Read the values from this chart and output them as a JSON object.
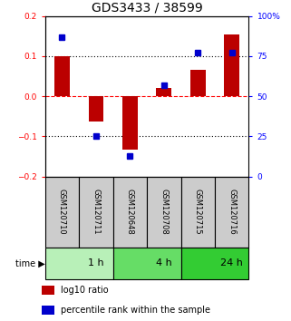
{
  "title": "GDS3433 / 38599",
  "samples": [
    "GSM120710",
    "GSM120711",
    "GSM120648",
    "GSM120708",
    "GSM120715",
    "GSM120716"
  ],
  "log10_ratio": [
    0.1,
    -0.062,
    -0.132,
    0.02,
    0.065,
    0.155
  ],
  "percentile": [
    87,
    25,
    13,
    57,
    77,
    77
  ],
  "time_groups": [
    {
      "label": "1 h",
      "start": 0,
      "end": 2,
      "color": "#b8f0b8"
    },
    {
      "label": "4 h",
      "start": 2,
      "end": 4,
      "color": "#66dd66"
    },
    {
      "label": "24 h",
      "start": 4,
      "end": 6,
      "color": "#33cc33"
    }
  ],
  "bar_color": "#bb0000",
  "dot_color": "#0000cc",
  "left_ylim": [
    -0.2,
    0.2
  ],
  "right_ylim": [
    0,
    100
  ],
  "left_yticks": [
    -0.2,
    -0.1,
    0.0,
    0.1,
    0.2
  ],
  "right_yticks": [
    0,
    25,
    50,
    75,
    100
  ],
  "right_yticklabels": [
    "0",
    "25",
    "50",
    "75",
    "100%"
  ],
  "hlines": [
    0.1,
    0.0,
    -0.1
  ],
  "hline_styles": [
    "dotted",
    "dashed",
    "dotted"
  ],
  "hline_colors": [
    "black",
    "red",
    "black"
  ],
  "sample_box_color": "#cccccc",
  "legend_items": [
    {
      "color": "#bb0000",
      "label": "log10 ratio"
    },
    {
      "color": "#0000cc",
      "label": "percentile rank within the sample"
    }
  ],
  "title_fontsize": 10,
  "tick_fontsize": 6.5,
  "sample_fontsize": 6,
  "time_fontsize": 8,
  "legend_fontsize": 7
}
